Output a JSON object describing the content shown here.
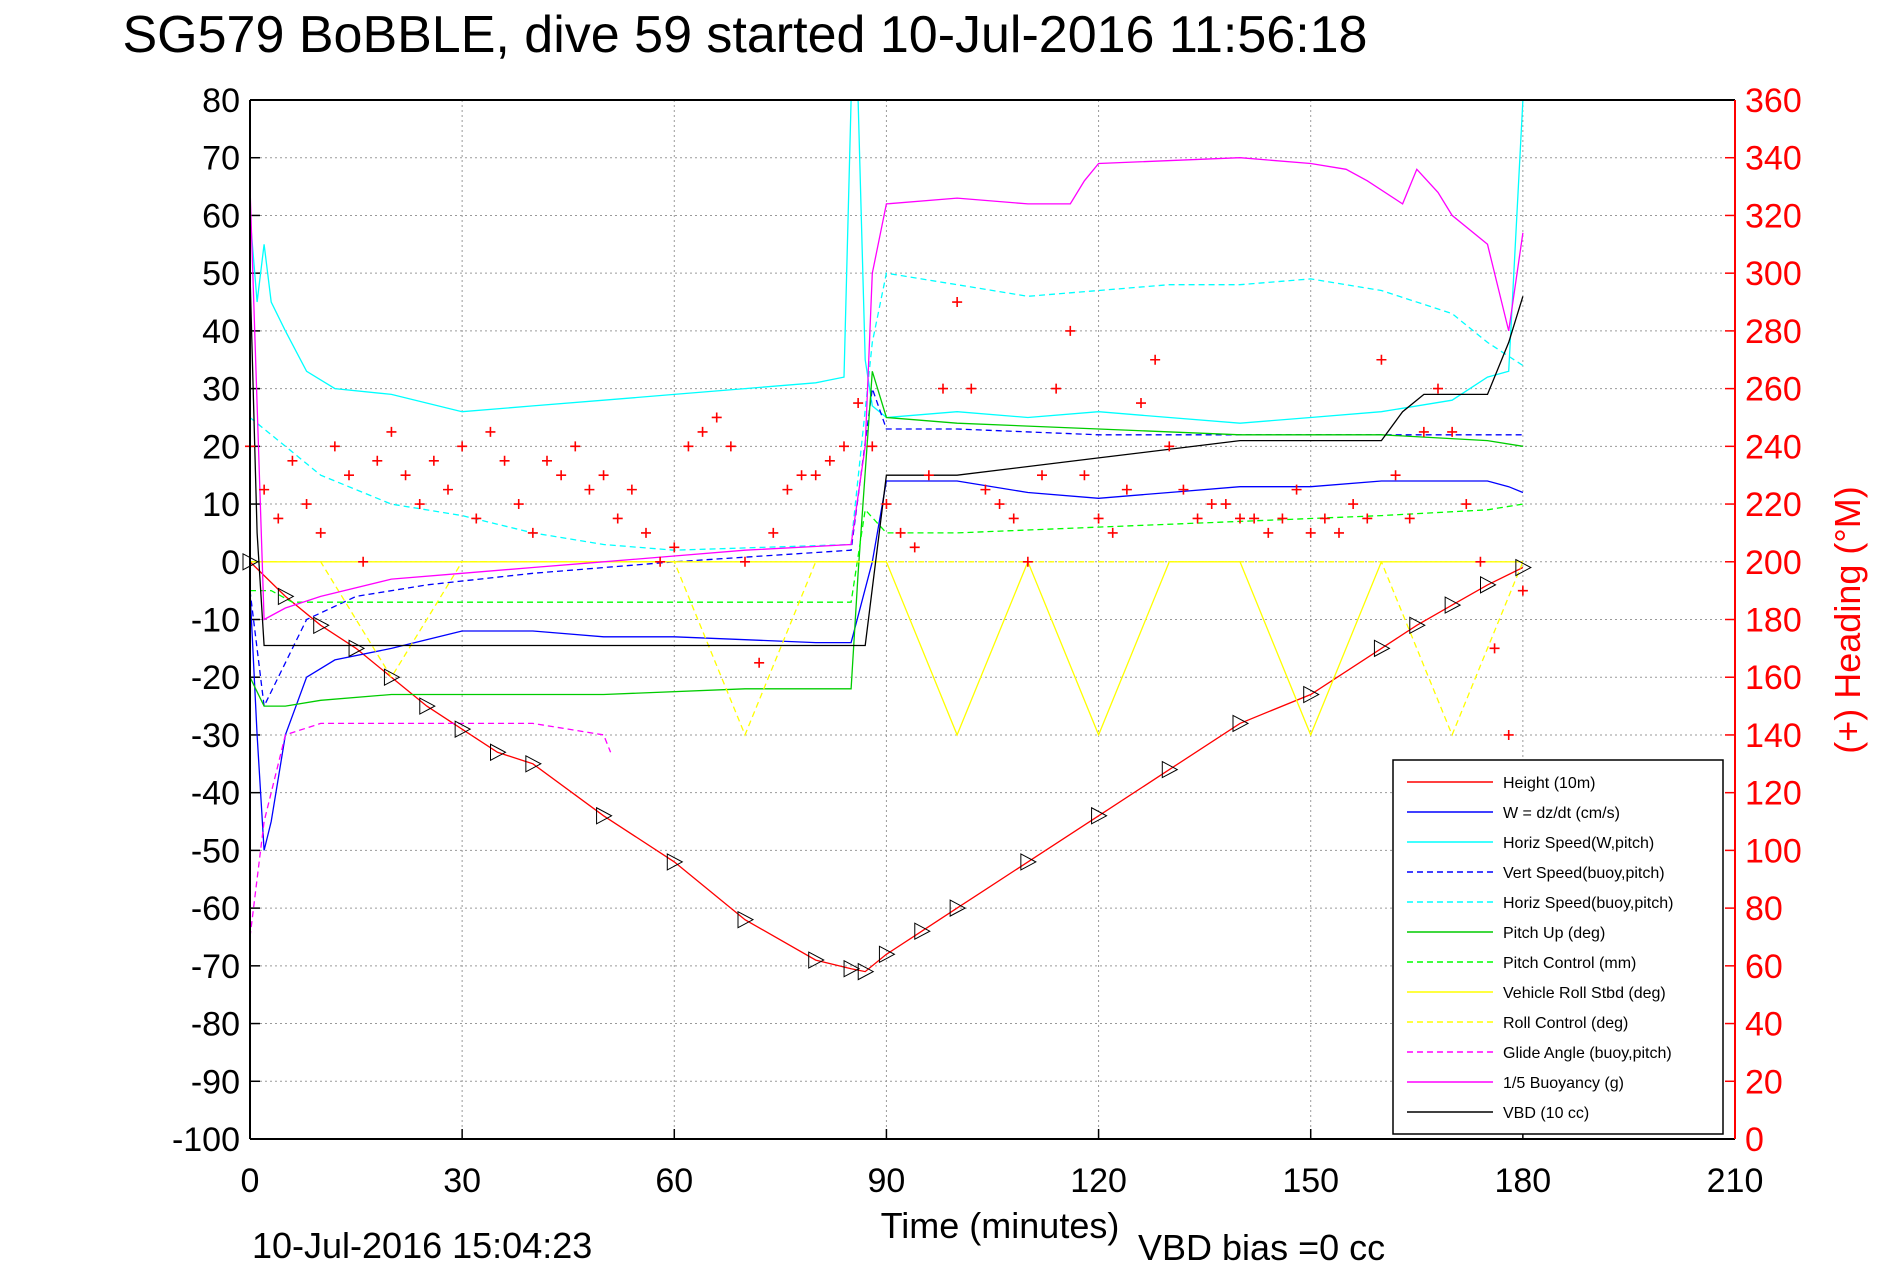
{
  "chart_data": {
    "type": "line",
    "title": "SG579 BoBBLE, dive 59 started 10-Jul-2016 11:56:18",
    "xlabel": "Time (minutes)",
    "ylabel_right": "(+) Heading (°M)",
    "xlim": [
      0,
      210
    ],
    "ylim": [
      -100,
      80
    ],
    "ylim_right": [
      0,
      360
    ],
    "x_ticks": [
      "0",
      "30",
      "60",
      "90",
      "120",
      "150",
      "180",
      "210"
    ],
    "y_ticks": [
      "80",
      "70",
      "60",
      "50",
      "40",
      "30",
      "20",
      "10",
      "0",
      "-10",
      "-20",
      "-30",
      "-40",
      "-50",
      "-60",
      "-70",
      "-80",
      "-90",
      "-100"
    ],
    "y_ticks_right": [
      "360",
      "340",
      "320",
      "300",
      "280",
      "260",
      "240",
      "220",
      "200",
      "180",
      "160",
      "140",
      "120",
      "100",
      "80",
      "60",
      "40",
      "20",
      "0"
    ],
    "grid": true,
    "legend_position": "bottom-right",
    "footer_left": "10-Jul-2016 15:04:23",
    "footer_right": "VBD bias =0 cc",
    "series": [
      {
        "name": "Height (10m)",
        "color": "#ff0000",
        "style": "solid",
        "markers": "triangle",
        "x": [
          0,
          5,
          10,
          15,
          20,
          25,
          30,
          35,
          40,
          50,
          60,
          70,
          80,
          85,
          87,
          90,
          95,
          100,
          110,
          120,
          130,
          140,
          150,
          160,
          165,
          170,
          175,
          180
        ],
        "y": [
          0,
          -6,
          -11,
          -15,
          -20,
          -25,
          -29,
          -33,
          -35,
          -44,
          -52,
          -62,
          -69,
          -70.5,
          -71,
          -68,
          -64,
          -60,
          -52,
          -44,
          -36,
          -28,
          -23,
          -15,
          -11,
          -7.5,
          -4,
          -1
        ]
      },
      {
        "name": "W = dz/dt (cm/s)",
        "color": "#0000ff",
        "style": "solid",
        "x": [
          0,
          1,
          2,
          3,
          5,
          8,
          12,
          20,
          30,
          40,
          50,
          60,
          70,
          80,
          85,
          88,
          90,
          100,
          110,
          120,
          130,
          140,
          150,
          160,
          170,
          175,
          178,
          180
        ],
        "y": [
          -5,
          -30,
          -50,
          -45,
          -30,
          -20,
          -17,
          -15,
          -12,
          -12,
          -13,
          -13,
          -13.5,
          -14,
          -14,
          0,
          14,
          14,
          12,
          11,
          12,
          13,
          13,
          14,
          14,
          14,
          13,
          12
        ]
      },
      {
        "name": "Horiz Speed(W,pitch)",
        "color": "#00ffff",
        "style": "solid",
        "x": [
          0,
          1,
          2,
          3,
          5,
          8,
          12,
          20,
          30,
          40,
          50,
          60,
          70,
          80,
          84,
          85,
          86,
          87,
          88,
          90,
          100,
          110,
          120,
          130,
          140,
          150,
          160,
          170,
          175,
          178,
          180
        ],
        "y": [
          60,
          45,
          55,
          45,
          40,
          33,
          30,
          29,
          26,
          27,
          28,
          29,
          30,
          31,
          32,
          80,
          80,
          35,
          27,
          25,
          26,
          25,
          26,
          25,
          24,
          25,
          26,
          28,
          32,
          33,
          80
        ]
      },
      {
        "name": "Vert Speed(buoy,pitch)",
        "color": "#0000ff",
        "style": "dashed",
        "x": [
          0,
          2,
          4,
          8,
          15,
          25,
          40,
          60,
          85,
          88,
          90,
          100,
          120,
          140,
          160,
          180
        ],
        "y": [
          -5,
          -25,
          -20,
          -10,
          -6,
          -4,
          -2,
          0,
          2,
          30,
          23,
          23,
          22,
          22,
          22,
          22
        ]
      },
      {
        "name": "Horiz Speed(buoy,pitch)",
        "color": "#00ffff",
        "style": "dashed",
        "x": [
          0,
          5,
          10,
          20,
          30,
          40,
          50,
          60,
          85,
          88,
          90,
          100,
          110,
          120,
          130,
          140,
          150,
          160,
          170,
          175,
          180
        ],
        "y": [
          25,
          20,
          15,
          10,
          8,
          5,
          3,
          2,
          3,
          38,
          50,
          48,
          46,
          47,
          48,
          48,
          49,
          47,
          43,
          38,
          34
        ]
      },
      {
        "name": "Pitch Up (deg)",
        "color": "#00cc00",
        "style": "solid",
        "x": [
          0,
          2,
          5,
          10,
          20,
          30,
          50,
          70,
          85,
          86,
          88,
          90,
          100,
          120,
          140,
          160,
          175,
          180
        ],
        "y": [
          -20,
          -25,
          -25,
          -24,
          -23,
          -23,
          -23,
          -22,
          -22,
          -2,
          33,
          25,
          24,
          23,
          22,
          22,
          21,
          20
        ]
      },
      {
        "name": "Pitch Control (mm)",
        "color": "#00ff00",
        "style": "dashed",
        "x": [
          0,
          3,
          6,
          20,
          40,
          60,
          85,
          87,
          90,
          100,
          120,
          140,
          160,
          175,
          180
        ],
        "y": [
          -5,
          -5,
          -7,
          -7,
          -7,
          -7,
          -7,
          9,
          5,
          5,
          6,
          7,
          8,
          9,
          10
        ]
      },
      {
        "name": "Vehicle Roll Stbd (deg)",
        "color": "#ffff00",
        "style": "solid",
        "x": [
          0,
          10,
          20,
          30,
          40,
          50,
          60,
          70,
          80,
          85,
          90,
          100,
          110,
          120,
          130,
          140,
          150,
          160,
          170,
          180
        ],
        "y": [
          0,
          0,
          0,
          0,
          0,
          0,
          0,
          0,
          0,
          0,
          0,
          -30,
          0,
          -30,
          0,
          0,
          -30,
          0,
          0,
          0
        ]
      },
      {
        "name": "Roll Control (deg)",
        "color": "#ffff00",
        "style": "dashed",
        "x": [
          0,
          10,
          20,
          30,
          40,
          60,
          70,
          80,
          90,
          100,
          110,
          120,
          130,
          140,
          150,
          160,
          170,
          180
        ],
        "y": [
          0,
          0,
          -20,
          0,
          0,
          0,
          -30,
          0,
          0,
          0,
          0,
          0,
          0,
          0,
          0,
          0,
          -30,
          0
        ]
      },
      {
        "name": "Glide Angle (buoy,pitch)",
        "color": "#ff00ff",
        "style": "dashed",
        "x": [
          0,
          2,
          5,
          10,
          20,
          30,
          40,
          50,
          51
        ],
        "y": [
          -65,
          -45,
          -30,
          -28,
          -28,
          -28,
          -28,
          -30,
          -33
        ]
      },
      {
        "name": "1/5 Buoyancy (g)",
        "color": "#ff00ff",
        "style": "solid",
        "x": [
          0,
          2,
          5,
          10,
          20,
          30,
          40,
          50,
          60,
          70,
          85,
          87,
          88,
          90,
          100,
          110,
          116,
          118,
          120,
          140,
          150,
          155,
          158,
          163,
          165,
          168,
          170,
          175,
          178,
          180
        ],
        "y": [
          65,
          -10,
          -8,
          -6,
          -3,
          -2,
          -1,
          0,
          1,
          2,
          3,
          20,
          50,
          62,
          63,
          62,
          62,
          66,
          69,
          70,
          69,
          68,
          66,
          62,
          68,
          64,
          60,
          55,
          40,
          57
        ]
      },
      {
        "name": "VBD (10 cc)",
        "color": "#000000",
        "style": "solid",
        "x": [
          0,
          1,
          2,
          10,
          20,
          30,
          40,
          60,
          85,
          87,
          90,
          100,
          120,
          140,
          160,
          163,
          166,
          170,
          175,
          178,
          180
        ],
        "y": [
          50,
          5,
          -14.5,
          -14.5,
          -14.5,
          -14.5,
          -14.5,
          -14.5,
          -14.5,
          -14.5,
          15,
          15,
          18,
          21,
          21,
          26,
          29,
          29,
          29,
          38,
          46
        ]
      }
    ],
    "heading": {
      "name": "(+) Heading",
      "color": "#ff0000",
      "marker": "plus",
      "x": [
        0,
        2,
        4,
        6,
        8,
        10,
        12,
        14,
        16,
        18,
        20,
        22,
        24,
        26,
        28,
        30,
        32,
        34,
        36,
        38,
        40,
        42,
        44,
        46,
        48,
        50,
        52,
        54,
        56,
        58,
        60,
        62,
        64,
        66,
        68,
        70,
        72,
        74,
        76,
        78,
        80,
        82,
        84,
        86,
        88,
        90,
        92,
        94,
        96,
        98,
        100,
        102,
        104,
        106,
        108,
        110,
        112,
        114,
        116,
        118,
        120,
        122,
        124,
        126,
        128,
        130,
        132,
        134,
        136,
        138,
        140,
        142,
        144,
        146,
        148,
        150,
        152,
        154,
        156,
        158,
        160,
        162,
        164,
        166,
        168,
        170,
        172,
        174,
        176,
        178,
        180
      ],
      "y": [
        240,
        225,
        215,
        235,
        220,
        210,
        240,
        230,
        200,
        235,
        245,
        230,
        220,
        235,
        225,
        240,
        215,
        245,
        235,
        220,
        210,
        235,
        230,
        240,
        225,
        230,
        215,
        225,
        210,
        200,
        205,
        240,
        245,
        250,
        240,
        200,
        165,
        210,
        225,
        230,
        230,
        235,
        240,
        255,
        240,
        220,
        210,
        205,
        230,
        260,
        290,
        260,
        225,
        220,
        215,
        200,
        230,
        260,
        280,
        230,
        215,
        210,
        225,
        255,
        270,
        240,
        225,
        215,
        220,
        220,
        215,
        215,
        210,
        215,
        225,
        210,
        215,
        210,
        220,
        215,
        270,
        230,
        215,
        245,
        260,
        245,
        220,
        200,
        170,
        140,
        190
      ]
    }
  }
}
